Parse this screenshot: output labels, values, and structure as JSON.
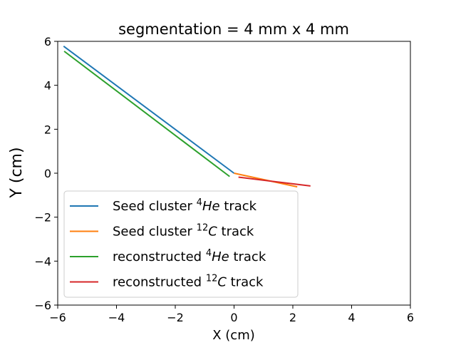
{
  "chart_data": {
    "type": "line",
    "title": "segmentation = 4 mm x 4 mm",
    "xlabel": "X (cm)",
    "ylabel": "Y (cm)",
    "xlim": [
      -6,
      6
    ],
    "ylim": [
      -6,
      6
    ],
    "xticks": [
      -6,
      -4,
      -2,
      0,
      2,
      4,
      6
    ],
    "yticks": [
      -6,
      -4,
      -2,
      0,
      2,
      4,
      6
    ],
    "xtick_labels": [
      "−6",
      "−4",
      "−2",
      "0",
      "2",
      "4",
      "6"
    ],
    "ytick_labels": [
      "−6",
      "−4",
      "−2",
      "0",
      "2",
      "4",
      "6"
    ],
    "grid": false,
    "legend_position": "lower-left",
    "series": [
      {
        "name_prefix": "Seed cluster ",
        "isotope_mass": "4",
        "isotope_symbol": "He",
        "name_suffix": " track",
        "color": "#1f77b4",
        "x": [
          -5.8,
          0.0
        ],
        "y": [
          5.78,
          0.0
        ]
      },
      {
        "name_prefix": "Seed cluster ",
        "isotope_mass": "12",
        "isotope_symbol": "C",
        "name_suffix": " track",
        "color": "#ff7f0e",
        "x": [
          0.0,
          2.15
        ],
        "y": [
          0.0,
          -0.62
        ]
      },
      {
        "name_prefix": "reconstructed ",
        "isotope_mass": "4",
        "isotope_symbol": "He",
        "name_suffix": " track",
        "color": "#2ca02c",
        "x": [
          -5.78,
          -0.15
        ],
        "y": [
          5.55,
          -0.15
        ]
      },
      {
        "name_prefix": "reconstructed ",
        "isotope_mass": "12",
        "isotope_symbol": "C",
        "name_suffix": " track",
        "color": "#d62728",
        "x": [
          0.15,
          2.6
        ],
        "y": [
          -0.18,
          -0.58
        ]
      }
    ]
  }
}
